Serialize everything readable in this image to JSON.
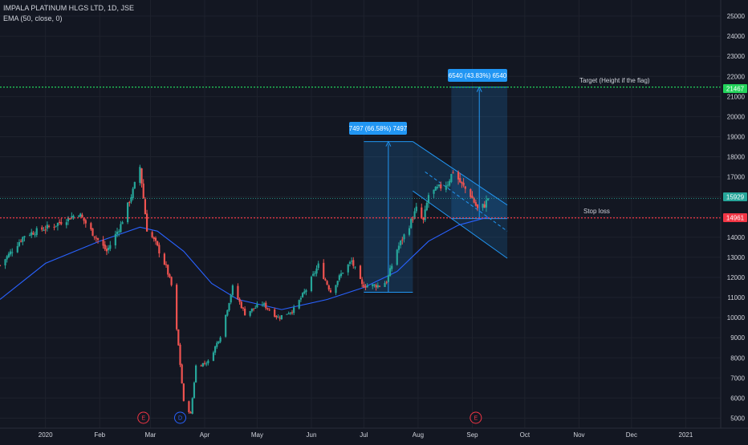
{
  "header": {
    "symbol_line": "IMPALA PLATINUM HLGS LTD, 1D, JSE",
    "indicator_line": "EMA (50, close, 0)"
  },
  "colors": {
    "background": "#131722",
    "up": "#26a69a",
    "down": "#ef5350",
    "ema": "#2962ff",
    "target": "#22d35a",
    "stop": "#f23645",
    "price": "#26a69a",
    "measure": "#2196f3"
  },
  "annotations": {
    "target_label": "Target (Height if the flag)",
    "stop_label": "Stop loss",
    "measure1_label": "7497 (66.58%) 7497",
    "measure2_label": "6540 (43.83%) 6540"
  },
  "price_tags": {
    "target": "21467",
    "current": "15929",
    "stop": "14961"
  },
  "events": [
    {
      "label": "E",
      "date": "2020-02-26",
      "kind": "earnings"
    },
    {
      "label": "D",
      "date": "2020-03-18",
      "kind": "dividend"
    },
    {
      "label": "E",
      "date": "2020-09-03",
      "kind": "earnings"
    }
  ],
  "chart_data": {
    "type": "candlestick",
    "title": "IMPALA PLATINUM HLGS LTD, 1D, JSE",
    "xlabel": "",
    "ylabel": "",
    "x_range": [
      "2019-12-06",
      "2021-01-21"
    ],
    "ylim": [
      4500,
      25800
    ],
    "y_ticks": [
      5000,
      6000,
      7000,
      8000,
      9000,
      10000,
      11000,
      12000,
      13000,
      14000,
      15000,
      16000,
      17000,
      18000,
      19000,
      20000,
      21000,
      22000,
      23000,
      24000,
      25000
    ],
    "x_ticks": [
      {
        "label": "2020",
        "date": "2020-01-01"
      },
      {
        "label": "Feb",
        "date": "2020-02-01"
      },
      {
        "label": "Mar",
        "date": "2020-03-01"
      },
      {
        "label": "Apr",
        "date": "2020-04-01"
      },
      {
        "label": "May",
        "date": "2020-05-01"
      },
      {
        "label": "Jun",
        "date": "2020-06-01"
      },
      {
        "label": "Jul",
        "date": "2020-07-01"
      },
      {
        "label": "Aug",
        "date": "2020-08-01"
      },
      {
        "label": "Sep",
        "date": "2020-09-01"
      },
      {
        "label": "Oct",
        "date": "2020-10-01"
      },
      {
        "label": "Nov",
        "date": "2020-11-01"
      },
      {
        "label": "Dec",
        "date": "2020-12-01"
      },
      {
        "label": "2021",
        "date": "2021-01-01"
      }
    ],
    "price_anchors": [
      {
        "date": "2019-12-06",
        "close": 12600
      },
      {
        "date": "2019-12-20",
        "close": 14100
      },
      {
        "date": "2020-01-06",
        "close": 14600
      },
      {
        "date": "2020-01-20",
        "close": 15200
      },
      {
        "date": "2020-01-28",
        "close": 14200
      },
      {
        "date": "2020-02-05",
        "close": 13300
      },
      {
        "date": "2020-02-13",
        "close": 14600
      },
      {
        "date": "2020-02-20",
        "close": 16300
      },
      {
        "date": "2020-02-24",
        "close": 17500
      },
      {
        "date": "2020-02-28",
        "close": 14400
      },
      {
        "date": "2020-03-04",
        "close": 13700
      },
      {
        "date": "2020-03-10",
        "close": 12500
      },
      {
        "date": "2020-03-13",
        "close": 11600
      },
      {
        "date": "2020-03-17",
        "close": 8600
      },
      {
        "date": "2020-03-20",
        "close": 5800
      },
      {
        "date": "2020-03-24",
        "close": 5200
      },
      {
        "date": "2020-03-27",
        "close": 7600
      },
      {
        "date": "2020-04-03",
        "close": 7800
      },
      {
        "date": "2020-04-10",
        "close": 9100
      },
      {
        "date": "2020-04-17",
        "close": 11500
      },
      {
        "date": "2020-04-24",
        "close": 10200
      },
      {
        "date": "2020-05-04",
        "close": 10700
      },
      {
        "date": "2020-05-13",
        "close": 10000
      },
      {
        "date": "2020-05-22",
        "close": 10400
      },
      {
        "date": "2020-05-29",
        "close": 11400
      },
      {
        "date": "2020-06-05",
        "close": 12600
      },
      {
        "date": "2020-06-12",
        "close": 11300
      },
      {
        "date": "2020-06-19",
        "close": 12300
      },
      {
        "date": "2020-06-24",
        "close": 12800
      },
      {
        "date": "2020-06-30",
        "close": 11600
      },
      {
        "date": "2020-07-10",
        "close": 11600
      },
      {
        "date": "2020-07-14",
        "close": 11800
      },
      {
        "date": "2020-07-20",
        "close": 13400
      },
      {
        "date": "2020-07-27",
        "close": 14600
      },
      {
        "date": "2020-07-31",
        "close": 15400
      },
      {
        "date": "2020-08-04",
        "close": 14800
      },
      {
        "date": "2020-08-07",
        "close": 16100
      },
      {
        "date": "2020-08-12",
        "close": 16400
      },
      {
        "date": "2020-08-18",
        "close": 16700
      },
      {
        "date": "2020-08-21",
        "close": 17300
      },
      {
        "date": "2020-08-26",
        "close": 16600
      },
      {
        "date": "2020-08-31",
        "close": 16100
      },
      {
        "date": "2020-09-04",
        "close": 15400
      },
      {
        "date": "2020-09-08",
        "close": 15600
      },
      {
        "date": "2020-09-10",
        "close": 15929
      }
    ],
    "ema_anchors": [
      {
        "date": "2019-12-06",
        "value": 10900
      },
      {
        "date": "2020-01-01",
        "value": 12700
      },
      {
        "date": "2020-02-01",
        "value": 13800
      },
      {
        "date": "2020-02-24",
        "value": 14500
      },
      {
        "date": "2020-03-05",
        "value": 14300
      },
      {
        "date": "2020-03-20",
        "value": 13300
      },
      {
        "date": "2020-04-05",
        "value": 11700
      },
      {
        "date": "2020-04-20",
        "value": 10900
      },
      {
        "date": "2020-05-15",
        "value": 10400
      },
      {
        "date": "2020-06-10",
        "value": 10900
      },
      {
        "date": "2020-07-01",
        "value": 11500
      },
      {
        "date": "2020-07-20",
        "value": 12300
      },
      {
        "date": "2020-08-07",
        "value": 13800
      },
      {
        "date": "2020-08-24",
        "value": 14600
      },
      {
        "date": "2020-09-10",
        "value": 15000
      }
    ],
    "lines": {
      "target_price": 21467,
      "stop_price": 14961,
      "current_price": 15929
    },
    "measures": [
      {
        "label": "7497 (66.58%) 7497",
        "start_date": "2020-07-01",
        "end_date": "2020-07-29",
        "low": 11260,
        "high": 18757
      },
      {
        "label": "6540 (43.83%) 6540",
        "start_date": "2020-08-20",
        "end_date": "2020-09-21",
        "low": 14927,
        "high": 21467
      }
    ],
    "flag_channel": {
      "upper": [
        {
          "date": "2020-07-29",
          "value": 18757
        },
        {
          "date": "2020-09-21",
          "value": 15600
        }
      ],
      "lower": [
        {
          "date": "2020-07-29",
          "value": 16300
        },
        {
          "date": "2020-09-21",
          "value": 12950
        }
      ],
      "mid": [
        {
          "date": "2020-08-05",
          "value": 17250
        },
        {
          "date": "2020-09-21",
          "value": 14300
        }
      ]
    }
  }
}
